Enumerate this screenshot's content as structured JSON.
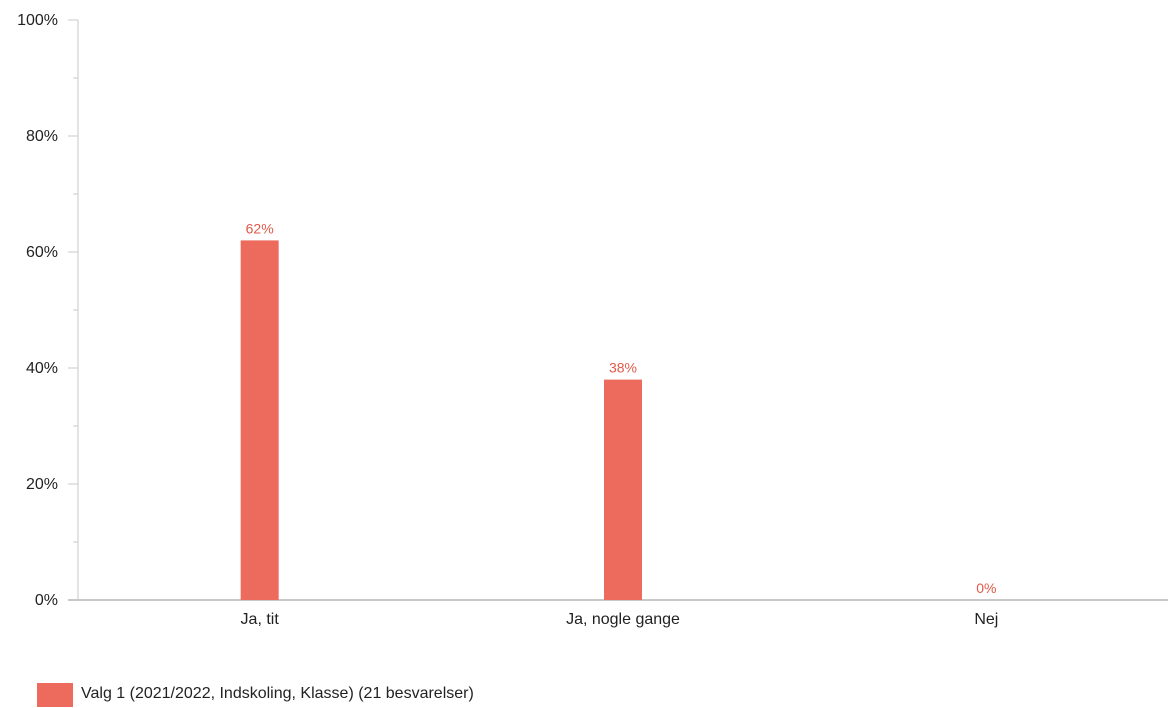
{
  "chart_data": {
    "type": "bar",
    "categories": [
      "Ja, tit",
      "Ja, nogle gange",
      "Nej"
    ],
    "series": [
      {
        "name": "Valg 1 (2021/2022, Indskoling, Klasse) (21 besvarelser)",
        "values": [
          62,
          38,
          0
        ],
        "labels": [
          "62%",
          "38%",
          "0%"
        ],
        "color": "#ec6b5c"
      }
    ],
    "yticks": [
      0,
      20,
      40,
      60,
      80,
      100
    ],
    "ytick_labels": [
      "0%",
      "20%",
      "40%",
      "60%",
      "80%",
      "100%"
    ],
    "ylim": [
      0,
      100
    ],
    "grid": false,
    "legend_position": "bottom-left"
  },
  "legend": {
    "label": "Valg 1 (2021/2022, Indskoling, Klasse) (21 besvarelser)",
    "color": "#ec6b5c"
  }
}
